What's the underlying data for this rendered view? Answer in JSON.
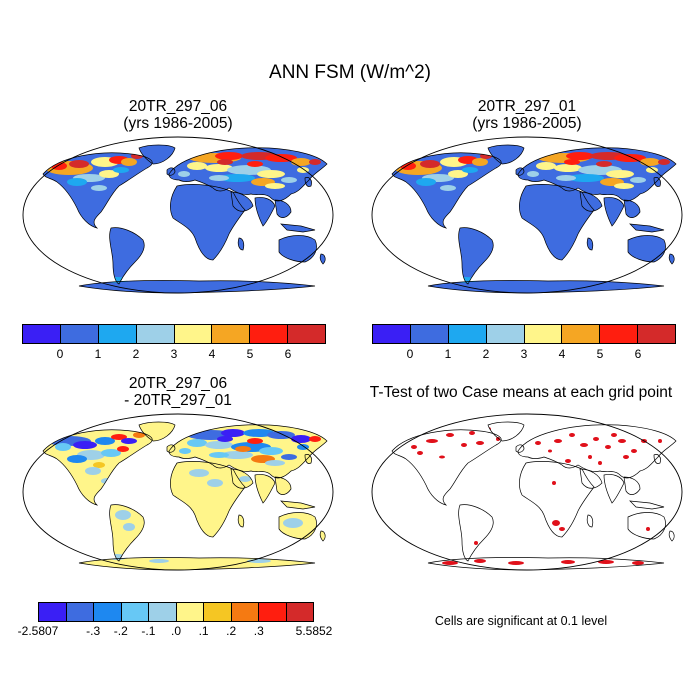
{
  "title": "ANN FSM (W/m^2)",
  "panels": {
    "top_left": {
      "line1": "20TR_297_06",
      "line2": "(yrs 1986-2005)"
    },
    "top_right": {
      "line1": "20TR_297_01",
      "line2": "(yrs 1986-2005)"
    },
    "bottom_left": {
      "line1": "20TR_297_06",
      "line2": "- 20TR_297_01"
    },
    "bottom_right": {
      "line1": "T-Test of two Case means at each grid point"
    }
  },
  "colorbar_top": {
    "colors": [
      "#3a1ff5",
      "#3e6ce0",
      "#1ea8f0",
      "#9ed0e8",
      "#fff58a",
      "#f5a623",
      "#ff1e0f",
      "#d42a2a"
    ],
    "labels": [
      "0",
      "1",
      "2",
      "3",
      "4",
      "5",
      "6"
    ]
  },
  "colorbar_diff": {
    "colors": [
      "#3a1ff5",
      "#3e6ce0",
      "#1e88f0",
      "#67c8f5",
      "#9ed0e8",
      "#fff58a",
      "#f5c623",
      "#f57a12",
      "#ff1e0f",
      "#d42a2a"
    ],
    "labels": [
      "-2.5807",
      "-.3",
      "-.2",
      "-.1",
      ".0",
      ".1",
      ".2",
      ".3",
      "5.5852"
    ]
  },
  "note": "Cells are significant at 0.1 level",
  "colors": {
    "ocean": "#ffffff",
    "land_base": "#3e6ce0",
    "diff_base": "#fff58a",
    "significant": "#e0101a"
  }
}
